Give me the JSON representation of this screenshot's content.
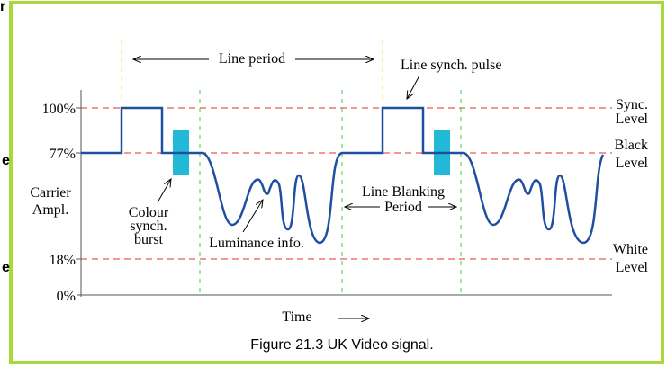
{
  "edge_fragments": [
    "r",
    "e",
    "e"
  ],
  "levels": {
    "sync": "100%",
    "black": "77%",
    "white": "18%",
    "zero": "0%"
  },
  "axis_label": [
    "Carrier",
    "Ampl."
  ],
  "level_names": {
    "sync": [
      "Sync.",
      "Level"
    ],
    "black": [
      "Black",
      "Level"
    ],
    "white": [
      "White",
      "Level"
    ]
  },
  "annotations": {
    "line_period": "Line period",
    "line_synch_pulse": "Line synch. pulse",
    "colour_burst": [
      "Colour",
      "synch.",
      "burst"
    ],
    "luminance": "Luminance info.",
    "blanking": [
      "Line Blanking",
      "Period"
    ],
    "time": "Time"
  },
  "caption": "Figure 21.3  UK Video signal."
}
